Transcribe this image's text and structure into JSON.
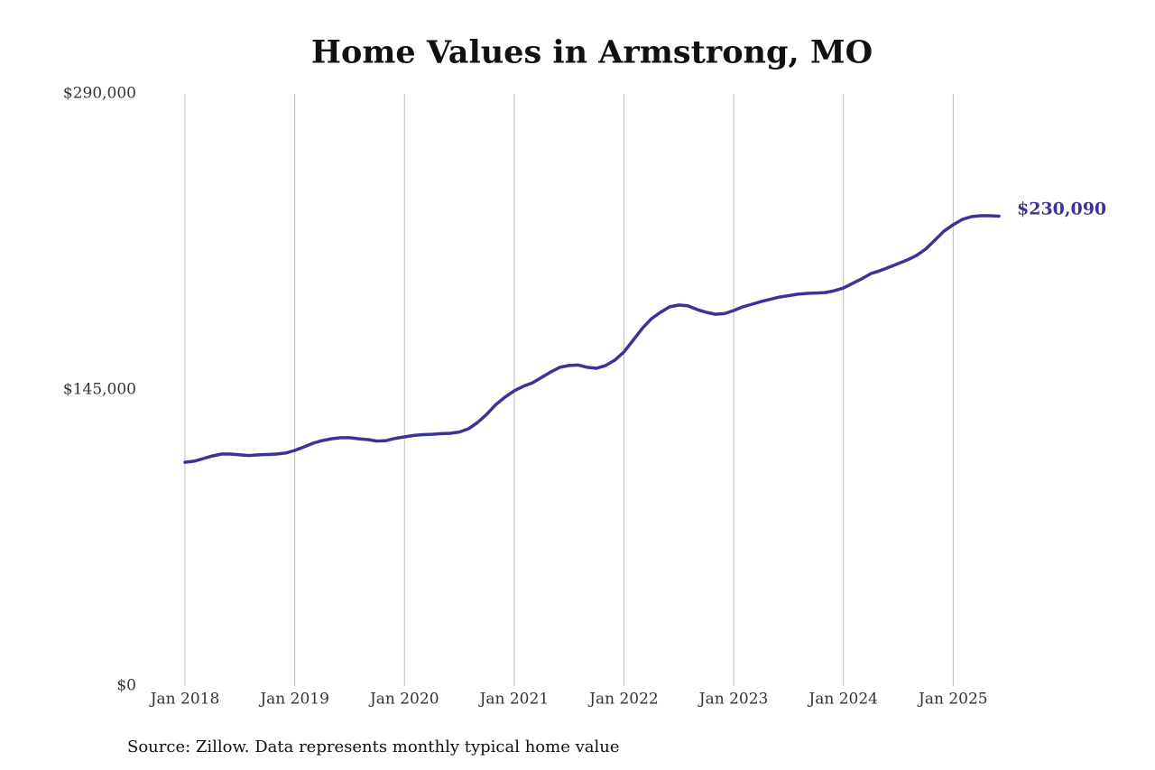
{
  "chart_data": {
    "type": "line",
    "title": "Home Values in Armstrong, MO",
    "source": "Source: Zillow. Data represents monthly typical home value",
    "color": "#3a3497",
    "grid": "x",
    "x": [
      0,
      1,
      2,
      3,
      4,
      5,
      6,
      7,
      8,
      9,
      10,
      11,
      12,
      13,
      14,
      15,
      16,
      17,
      18,
      19,
      20,
      21,
      22,
      23,
      24,
      25,
      26,
      27,
      28,
      29,
      30,
      31,
      32,
      33,
      34,
      35,
      36,
      37,
      38,
      39,
      40,
      41,
      42,
      43,
      44,
      45,
      46,
      47,
      48,
      49,
      50,
      51,
      52,
      53,
      54,
      55,
      56,
      57,
      58,
      59,
      60,
      61,
      62,
      63,
      64,
      65,
      66,
      67,
      68,
      69,
      70,
      71,
      72,
      73,
      74,
      75,
      76,
      77,
      78,
      79,
      80,
      81,
      82,
      83,
      84,
      85,
      86,
      87,
      88,
      89
    ],
    "values": [
      109600,
      110100,
      111400,
      112700,
      113600,
      113600,
      113200,
      112900,
      113200,
      113400,
      113600,
      114100,
      115400,
      117100,
      118900,
      120200,
      121100,
      121600,
      121600,
      121100,
      120700,
      120000,
      120200,
      121300,
      122000,
      122700,
      123100,
      123300,
      123600,
      123800,
      124400,
      126000,
      129100,
      133100,
      137900,
      141500,
      144600,
      146800,
      148500,
      151200,
      153800,
      156100,
      157000,
      157200,
      156100,
      155600,
      157000,
      159600,
      163600,
      169300,
      175100,
      179900,
      183000,
      185700,
      186600,
      186200,
      184400,
      183000,
      182100,
      182400,
      183900,
      185700,
      187000,
      188300,
      189400,
      190500,
      191200,
      191900,
      192300,
      192500,
      192700,
      193600,
      194900,
      197200,
      199400,
      202000,
      203400,
      205100,
      206900,
      208700,
      210900,
      214000,
      218400,
      222800,
      225900,
      228500,
      229900,
      230300,
      230300,
      230090
    ],
    "value_labels": [
      null,
      null,
      null,
      null,
      null,
      null,
      null,
      null,
      null,
      null,
      null,
      null,
      null,
      null,
      null,
      null,
      null,
      null,
      null,
      null,
      null,
      null,
      null,
      null,
      null,
      null,
      null,
      null,
      null,
      null,
      null,
      null,
      null,
      null,
      null,
      null,
      null,
      null,
      null,
      null,
      null,
      null,
      null,
      null,
      null,
      null,
      null,
      null,
      null,
      null,
      null,
      null,
      null,
      null,
      null,
      null,
      null,
      null,
      null,
      null,
      null,
      null,
      null,
      null,
      null,
      null,
      null,
      null,
      null,
      null,
      null,
      null,
      null,
      null,
      null,
      null,
      null,
      null,
      null,
      null,
      null,
      null,
      null,
      null,
      null,
      null,
      null,
      null,
      null,
      "$230,090"
    ],
    "xlim": [
      0,
      89
    ],
    "xticks": [
      {
        "value": 0,
        "label": "Jan 2018"
      },
      {
        "value": 12,
        "label": "Jan 2019"
      },
      {
        "value": 24,
        "label": "Jan 2020"
      },
      {
        "value": 36,
        "label": "Jan 2021"
      },
      {
        "value": 48,
        "label": "Jan 2022"
      },
      {
        "value": 60,
        "label": "Jan 2023"
      },
      {
        "value": 72,
        "label": "Jan 2024"
      },
      {
        "value": 84,
        "label": "Jan 2025"
      }
    ],
    "ylim": [
      0,
      290000
    ],
    "yticks": [
      {
        "value": 0,
        "label": "$0"
      },
      {
        "value": 145000,
        "label": "$145,000"
      },
      {
        "value": 290000,
        "label": "$290,000"
      }
    ]
  }
}
